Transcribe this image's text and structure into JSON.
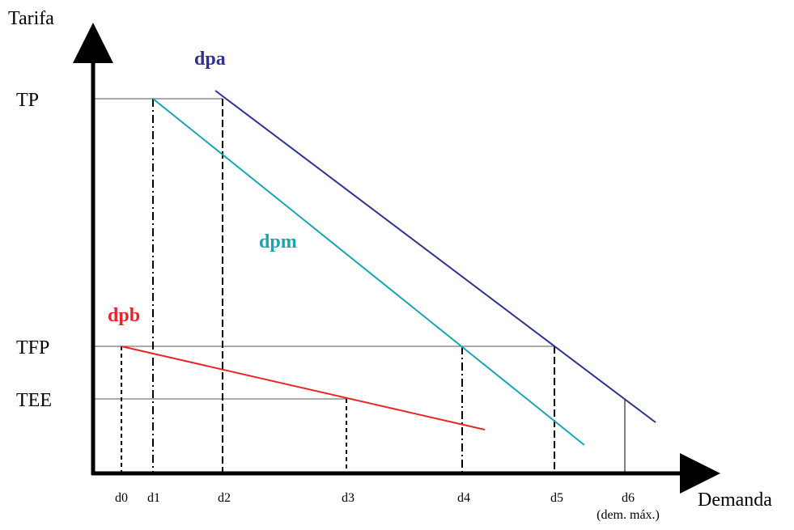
{
  "axes": {
    "y_label": "Tarifa",
    "x_label": "Demanda"
  },
  "tariff_levels": [
    "TP",
    "TFP",
    "TEE"
  ],
  "demand_points": [
    "d0",
    "d1",
    "d2",
    "d3",
    "d4",
    "d5",
    "d6"
  ],
  "d6_note": "(dem. máx.)",
  "curves": [
    "dpa",
    "dpm",
    "dpb"
  ]
}
